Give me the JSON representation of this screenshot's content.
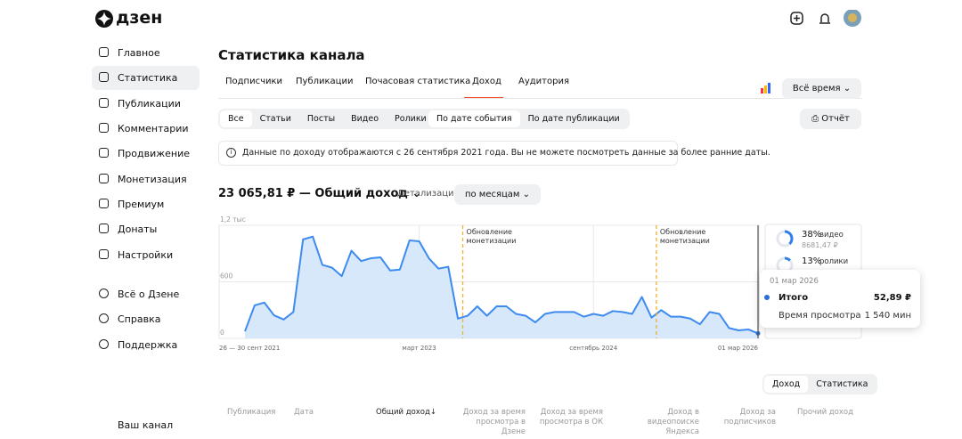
{
  "logo": "дзен",
  "sidebar": {
    "items": [
      "Главное",
      "Статистика",
      "Публикации",
      "Комментарии",
      "Продвижение",
      "Монетизация",
      "Премиум",
      "Донаты",
      "Настройки"
    ],
    "active": 1,
    "help_items": [
      "Всё о Дзене",
      "Справка",
      "Поддержка"
    ],
    "channel": "Ваш канал"
  },
  "header": {
    "title": "Статистика канала"
  },
  "tabs": {
    "items": [
      "Подписчики",
      "Публикации",
      "Почасовая статистика",
      "Доход",
      "Аудитория"
    ],
    "active": 3
  },
  "period": "Всё время",
  "filters": {
    "types": [
      "Все",
      "Статьи",
      "Посты",
      "Видео",
      "Ролики"
    ],
    "types_active": 0,
    "dates": [
      "По дате события",
      "По дате публикации"
    ],
    "dates_active": 0
  },
  "report_button": "Отчёт",
  "notice": "Данные по доходу отображаются с 26 сентября 2021 года. Вы не можете посмотреть данные за более ранние даты.",
  "summary": {
    "total": "23 065,81 ₽ — Общий доход",
    "detail_label": "Детализация",
    "detail_value": "по месяцам"
  },
  "chart_data": {
    "type": "area",
    "color": "#3d8bef",
    "fill": "#d7e8fb",
    "categories": [
      "26 — 30 сент 2021",
      null,
      null,
      null,
      null,
      null,
      null,
      null,
      null,
      null,
      null,
      null,
      null,
      null,
      null,
      null,
      null,
      null,
      "март 2023",
      null,
      null,
      null,
      null,
      null,
      null,
      null,
      null,
      null,
      null,
      null,
      null,
      null,
      null,
      null,
      null,
      null,
      "сентябрь 2024",
      null,
      null,
      null,
      null,
      null,
      null,
      null,
      null,
      null,
      null,
      null,
      null,
      null,
      null,
      null,
      null,
      "01 мар 2026"
    ],
    "values": [
      75,
      350,
      380,
      245,
      200,
      280,
      1050,
      1080,
      780,
      750,
      660,
      930,
      820,
      850,
      860,
      720,
      730,
      1040,
      1030,
      850,
      740,
      760,
      210,
      240,
      340,
      240,
      340,
      340,
      260,
      240,
      170,
      260,
      280,
      280,
      280,
      230,
      260,
      240,
      290,
      280,
      260,
      440,
      220,
      300,
      230,
      230,
      210,
      150,
      280,
      260,
      110,
      85,
      95,
      52.89
    ],
    "ylim": [
      0,
      1200
    ],
    "yticks": [
      0,
      600,
      {
        "value": 1200,
        "label": "1,2 тыс"
      }
    ],
    "grid": true,
    "annotations": [
      {
        "text": "Обновление монетизации",
        "x": 22.5
      },
      {
        "text": "Обновление монетизации",
        "x": 42.5
      }
    ]
  },
  "breakdown": [
    {
      "percent": 38,
      "percent_label": "38%",
      "label": "видео",
      "amount": "8681,47 ₽"
    },
    {
      "percent": 13,
      "percent_label": "13%",
      "label": "ролики"
    }
  ],
  "tooltip": {
    "date": "01 мар 2026",
    "rows": [
      [
        "Итого",
        "52,89 ₽"
      ],
      [
        "Время просмотра",
        "1 540 мин"
      ]
    ]
  },
  "view_toggle": {
    "items": [
      "Доход",
      "Статистика"
    ],
    "active": 0
  },
  "table": {
    "columns": [
      "Публикация",
      "Дата",
      "Общий доход",
      "Доход за время просмотра в Дзене",
      "Доход за время просмотра в ОК",
      "Доход в видеопоиске Яндекса",
      "Доход за подписчиков",
      "Прочий доход"
    ],
    "sorted": 2
  }
}
